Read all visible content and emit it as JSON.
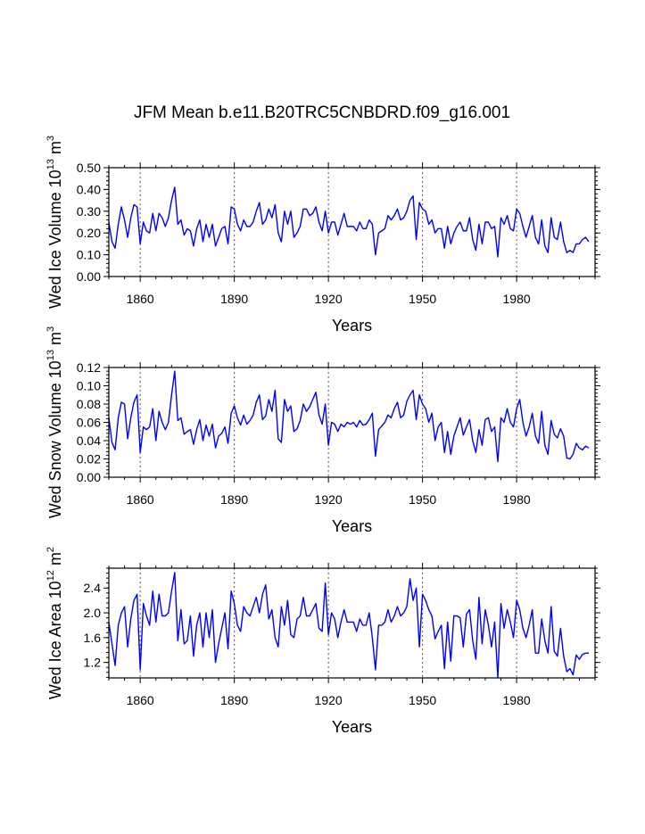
{
  "title": "JFM Mean b.e11.B20TRC5CNBDRD.f09_g16.001",
  "chart_data": [
    {
      "type": "line",
      "name": "wed-ice-volume",
      "ylabel": {
        "text": "Wed Ice Volume 10",
        "exp1": "13",
        "mid": " m",
        "exp2": "3"
      },
      "xlabel": "Years",
      "xlim": [
        1850,
        2005
      ],
      "ylim": [
        0,
        0.5
      ],
      "xticks": [
        1860,
        1890,
        1920,
        1950,
        1980
      ],
      "xtick_labels": [
        "1860",
        "1890",
        "1920",
        "1950",
        "1980"
      ],
      "yticks": [
        0,
        0.1,
        0.2,
        0.3,
        0.4,
        0.5
      ],
      "ytick_labels": [
        "0.00",
        "0.10",
        "0.20",
        "0.30",
        "0.40",
        "0.50"
      ],
      "yminor": 0.02,
      "x_start": 1850,
      "values": [
        0.25,
        0.16,
        0.13,
        0.24,
        0.32,
        0.26,
        0.18,
        0.27,
        0.33,
        0.32,
        0.15,
        0.25,
        0.21,
        0.2,
        0.29,
        0.21,
        0.29,
        0.27,
        0.23,
        0.27,
        0.35,
        0.41,
        0.24,
        0.26,
        0.19,
        0.22,
        0.21,
        0.14,
        0.22,
        0.26,
        0.16,
        0.24,
        0.18,
        0.24,
        0.14,
        0.18,
        0.22,
        0.23,
        0.15,
        0.32,
        0.31,
        0.24,
        0.21,
        0.26,
        0.23,
        0.23,
        0.25,
        0.3,
        0.34,
        0.24,
        0.26,
        0.31,
        0.27,
        0.33,
        0.2,
        0.16,
        0.3,
        0.24,
        0.3,
        0.18,
        0.2,
        0.23,
        0.31,
        0.31,
        0.28,
        0.29,
        0.32,
        0.25,
        0.21,
        0.3,
        0.2,
        0.25,
        0.25,
        0.19,
        0.24,
        0.29,
        0.23,
        0.23,
        0.23,
        0.21,
        0.25,
        0.22,
        0.22,
        0.26,
        0.24,
        0.1,
        0.2,
        0.21,
        0.22,
        0.28,
        0.26,
        0.28,
        0.31,
        0.26,
        0.27,
        0.3,
        0.35,
        0.37,
        0.17,
        0.34,
        0.31,
        0.3,
        0.24,
        0.26,
        0.2,
        0.22,
        0.22,
        0.13,
        0.23,
        0.15,
        0.2,
        0.23,
        0.25,
        0.21,
        0.21,
        0.27,
        0.17,
        0.12,
        0.24,
        0.15,
        0.25,
        0.25,
        0.22,
        0.23,
        0.09,
        0.27,
        0.24,
        0.28,
        0.22,
        0.21,
        0.31,
        0.29,
        0.23,
        0.18,
        0.23,
        0.28,
        0.18,
        0.15,
        0.26,
        0.14,
        0.11,
        0.27,
        0.18,
        0.17,
        0.25,
        0.16,
        0.11,
        0.12,
        0.11,
        0.15,
        0.15,
        0.17,
        0.18,
        0.16
      ]
    },
    {
      "type": "line",
      "name": "wed-snow-volume",
      "ylabel": {
        "text": "Wed Snow Volume 10",
        "exp1": "13",
        "mid": " m",
        "exp2": "3"
      },
      "xlabel": "Years",
      "xlim": [
        1850,
        2005
      ],
      "ylim": [
        0,
        0.12
      ],
      "xticks": [
        1860,
        1890,
        1920,
        1950,
        1980
      ],
      "xtick_labels": [
        "1860",
        "1890",
        "1920",
        "1950",
        "1980"
      ],
      "yticks": [
        0,
        0.02,
        0.04,
        0.06,
        0.08,
        0.1,
        0.12
      ],
      "ytick_labels": [
        "0.00",
        "0.02",
        "0.04",
        "0.06",
        "0.08",
        "0.10",
        "0.12"
      ],
      "yminor": 0.004,
      "x_start": 1850,
      "values": [
        0.065,
        0.038,
        0.03,
        0.065,
        0.082,
        0.08,
        0.042,
        0.065,
        0.082,
        0.09,
        0.027,
        0.055,
        0.052,
        0.055,
        0.075,
        0.04,
        0.072,
        0.06,
        0.052,
        0.06,
        0.09,
        0.116,
        0.062,
        0.065,
        0.047,
        0.05,
        0.052,
        0.036,
        0.052,
        0.063,
        0.04,
        0.057,
        0.045,
        0.058,
        0.032,
        0.045,
        0.048,
        0.055,
        0.037,
        0.07,
        0.078,
        0.065,
        0.057,
        0.068,
        0.058,
        0.062,
        0.068,
        0.082,
        0.09,
        0.063,
        0.067,
        0.085,
        0.072,
        0.095,
        0.042,
        0.038,
        0.085,
        0.072,
        0.078,
        0.05,
        0.053,
        0.062,
        0.08,
        0.072,
        0.077,
        0.085,
        0.093,
        0.068,
        0.058,
        0.08,
        0.035,
        0.06,
        0.058,
        0.05,
        0.058,
        0.055,
        0.06,
        0.058,
        0.06,
        0.055,
        0.062,
        0.057,
        0.058,
        0.063,
        0.07,
        0.023,
        0.052,
        0.056,
        0.06,
        0.068,
        0.065,
        0.075,
        0.082,
        0.065,
        0.068,
        0.083,
        0.09,
        0.095,
        0.063,
        0.09,
        0.08,
        0.075,
        0.06,
        0.07,
        0.04,
        0.055,
        0.06,
        0.027,
        0.05,
        0.025,
        0.045,
        0.055,
        0.065,
        0.046,
        0.055,
        0.063,
        0.04,
        0.027,
        0.052,
        0.035,
        0.063,
        0.065,
        0.05,
        0.055,
        0.017,
        0.065,
        0.06,
        0.075,
        0.06,
        0.055,
        0.075,
        0.085,
        0.06,
        0.045,
        0.055,
        0.07,
        0.045,
        0.037,
        0.072,
        0.035,
        0.025,
        0.062,
        0.047,
        0.043,
        0.053,
        0.045,
        0.021,
        0.02,
        0.025,
        0.037,
        0.032,
        0.03,
        0.034,
        0.032
      ]
    },
    {
      "type": "line",
      "name": "wed-ice-area",
      "ylabel": {
        "text": "Wed Ice Area 10",
        "exp1": "12",
        "mid": " m",
        "exp2": "2"
      },
      "xlabel": "Years",
      "xlim": [
        1850,
        2005
      ],
      "ylim": [
        0.95,
        2.72
      ],
      "xticks": [
        1860,
        1890,
        1920,
        1950,
        1980
      ],
      "xtick_labels": [
        "1860",
        "1890",
        "1920",
        "1950",
        "1980"
      ],
      "yticks": [
        1.2,
        1.6,
        2.0,
        2.4
      ],
      "ytick_labels": [
        "1.2",
        "1.6",
        "2.0",
        "2.4"
      ],
      "yminor": 0.08,
      "x_start": 1850,
      "values": [
        1.85,
        1.5,
        1.15,
        1.8,
        2.0,
        2.1,
        1.45,
        1.9,
        2.2,
        2.3,
        1.08,
        2.15,
        1.95,
        1.8,
        2.35,
        1.85,
        2.3,
        1.95,
        1.95,
        2.0,
        2.35,
        2.65,
        1.55,
        2.05,
        1.5,
        1.55,
        1.95,
        1.3,
        1.8,
        2.0,
        1.45,
        2.0,
        1.6,
        2.05,
        1.2,
        1.5,
        1.75,
        2.0,
        1.42,
        2.35,
        2.15,
        1.8,
        1.7,
        2.1,
        2.0,
        1.95,
        2.1,
        2.25,
        2.0,
        2.3,
        2.45,
        1.9,
        2.05,
        1.6,
        1.45,
        2.1,
        1.8,
        2.2,
        1.65,
        1.6,
        1.9,
        1.95,
        2.25,
        1.95,
        1.95,
        2.05,
        2.15,
        1.75,
        1.7,
        2.48,
        1.65,
        2.0,
        1.9,
        1.6,
        1.85,
        2.05,
        1.85,
        1.85,
        1.85,
        1.7,
        1.9,
        1.8,
        1.8,
        2.0,
        1.6,
        1.08,
        1.8,
        1.8,
        1.85,
        2.05,
        1.85,
        1.95,
        2.1,
        1.95,
        2.0,
        2.1,
        2.55,
        2.2,
        2.4,
        1.45,
        2.3,
        2.2,
        2.05,
        1.95,
        1.58,
        1.7,
        1.8,
        1.1,
        1.85,
        1.22,
        1.95,
        1.95,
        1.92,
        1.45,
        1.98,
        2.05,
        1.55,
        1.25,
        2.25,
        1.5,
        2.05,
        1.8,
        1.45,
        1.85,
        0.95,
        2.15,
        1.75,
        2.05,
        1.85,
        1.6,
        2.2,
        2.05,
        1.75,
        1.6,
        1.8,
        2.05,
        1.35,
        1.35,
        1.9,
        1.55,
        1.35,
        2.1,
        1.38,
        1.3,
        1.75,
        1.3,
        1.05,
        1.1,
        1.0,
        1.32,
        1.25,
        1.33,
        1.35,
        1.35
      ]
    }
  ]
}
